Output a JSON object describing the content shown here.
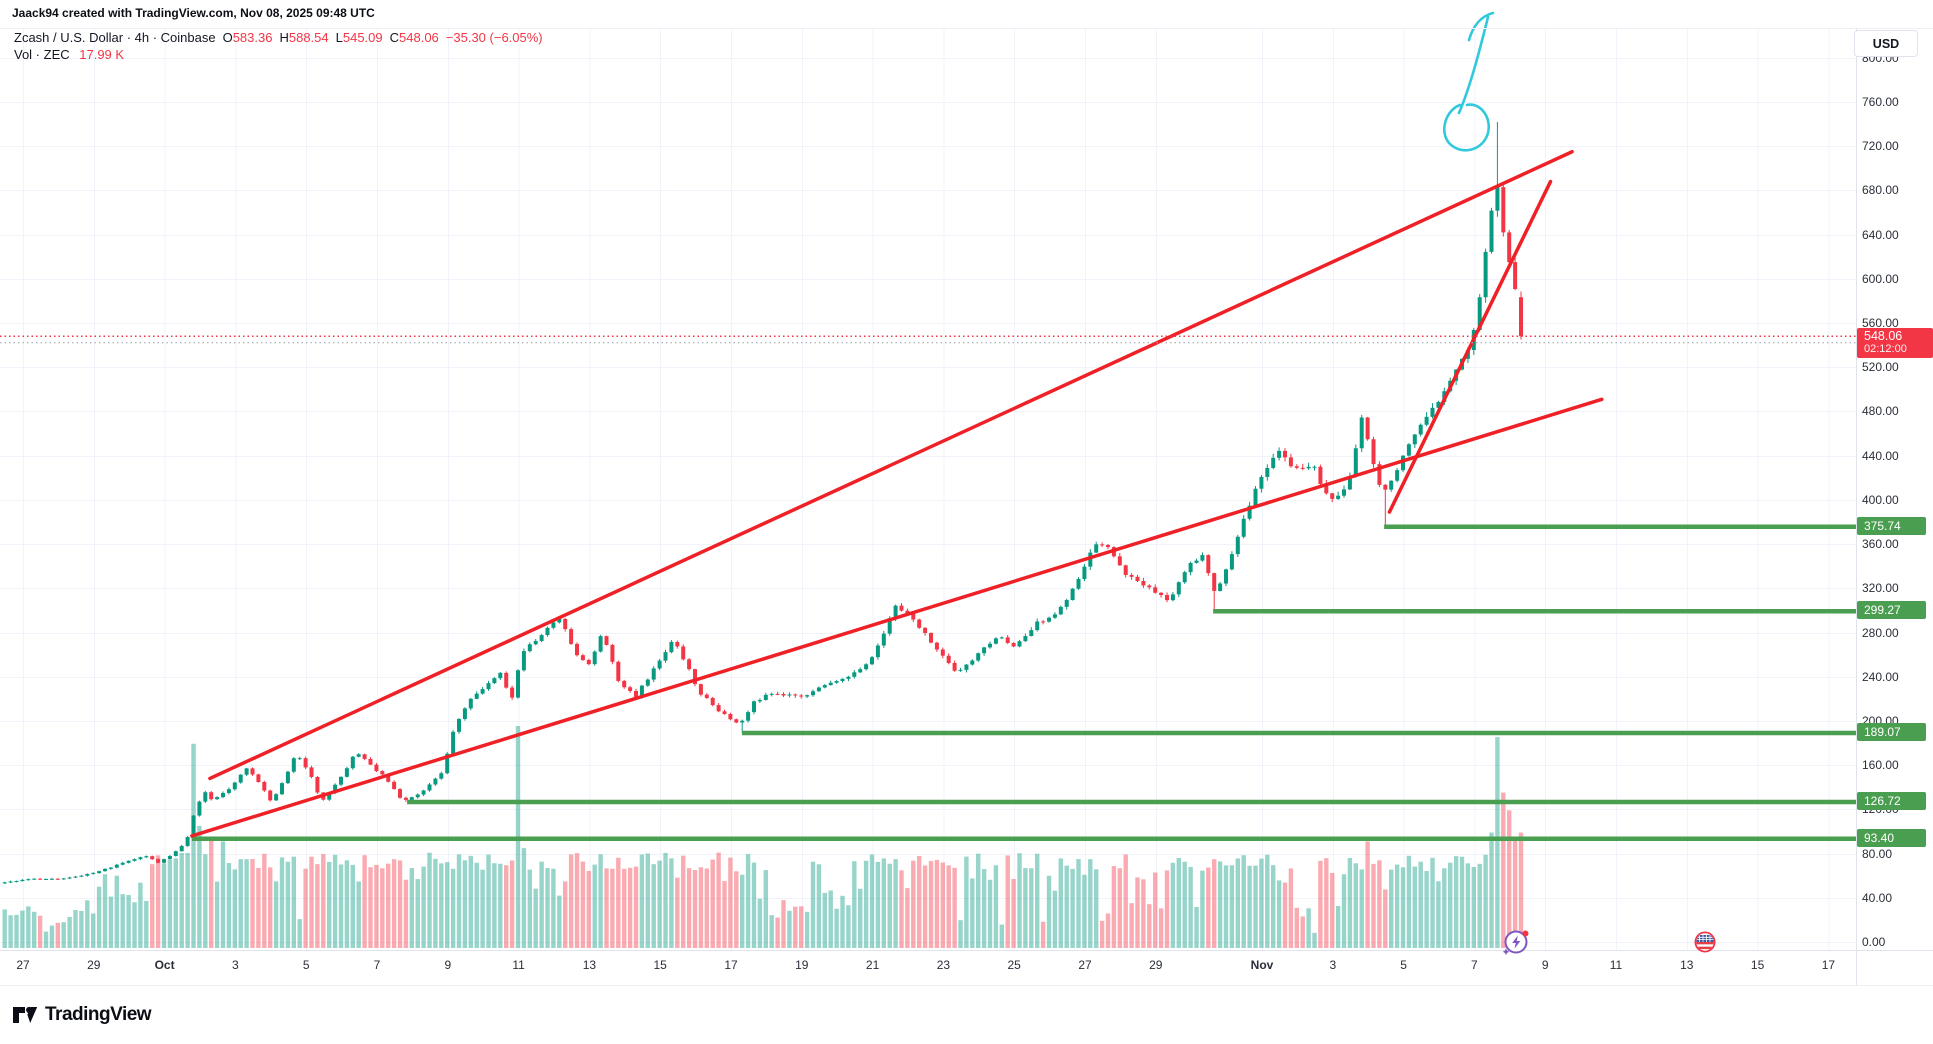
{
  "watermark": "Jaack94 created with TradingView.com, Nov 08, 2025 09:48 UTC",
  "legend": {
    "symbol_title": "Zcash / U.S. Dollar · 4h · Coinbase",
    "ohlc": [
      {
        "k": "O",
        "v": "583.36"
      },
      {
        "k": "H",
        "v": "588.54"
      },
      {
        "k": "L",
        "v": "545.09"
      },
      {
        "k": "C",
        "v": "548.06"
      }
    ],
    "change": "−35.30 (−6.05%)",
    "volume_label": "Vol · ZEC",
    "volume_value": "17.99 K"
  },
  "price_label": {
    "value": "548.06",
    "countdown": "02:12:00"
  },
  "axis": {
    "currency_button": "USD"
  },
  "logo_text": "TradingView",
  "colors": {
    "up": "#089981",
    "down": "#f23645",
    "trendline_red": "#ef2026",
    "support_green": "#4a9e50",
    "badge_red": "#f23645",
    "cyan": "#26c6da",
    "grid": "#f0f3fa",
    "axis_text": "#2a2e39"
  },
  "chart_data": {
    "type": "candlestick",
    "title": "Zcash / U.S. Dollar",
    "symbol": "ZECUSD",
    "exchange": "Coinbase",
    "interval": "4h",
    "day_unit": "days since Sep 27 2025 00:00 UTC",
    "y_axis": {
      "label": "USD",
      "min": 0,
      "max": 800,
      "tick_step": 40,
      "grid": true
    },
    "time_ticks": [
      [
        "27",
        0,
        0
      ],
      [
        "29",
        2,
        0
      ],
      [
        "Oct",
        4,
        1
      ],
      [
        "3",
        6,
        0
      ],
      [
        "5",
        8,
        0
      ],
      [
        "7",
        10,
        0
      ],
      [
        "9",
        12,
        0
      ],
      [
        "11",
        14,
        0
      ],
      [
        "13",
        16,
        0
      ],
      [
        "15",
        18,
        0
      ],
      [
        "17",
        20,
        0
      ],
      [
        "19",
        22,
        0
      ],
      [
        "21",
        24,
        0
      ],
      [
        "23",
        26,
        0
      ],
      [
        "25",
        28,
        0
      ],
      [
        "27",
        30,
        0
      ],
      [
        "29",
        32,
        0
      ],
      [
        "Nov",
        35,
        1
      ],
      [
        "3",
        37,
        0
      ],
      [
        "5",
        39,
        0
      ],
      [
        "7",
        41,
        0
      ],
      [
        "9",
        43,
        0
      ],
      [
        "11",
        45,
        0
      ],
      [
        "13",
        47,
        0
      ],
      [
        "15",
        49,
        0
      ],
      [
        "17",
        51,
        0
      ]
    ],
    "price_path_anchors": [
      [
        -0.6,
        53
      ],
      [
        0.3,
        57
      ],
      [
        1.2,
        57
      ],
      [
        2.0,
        62
      ],
      [
        2.6,
        68
      ],
      [
        3.1,
        74
      ],
      [
        3.6,
        78
      ],
      [
        3.9,
        72
      ],
      [
        4.3,
        79
      ],
      [
        4.55,
        86
      ],
      [
        4.72,
        94
      ],
      [
        4.95,
        120
      ],
      [
        5.2,
        136
      ],
      [
        5.45,
        128
      ],
      [
        6.0,
        141
      ],
      [
        6.4,
        158
      ],
      [
        6.8,
        143
      ],
      [
        7.1,
        127
      ],
      [
        7.5,
        149
      ],
      [
        7.8,
        170
      ],
      [
        8.2,
        152
      ],
      [
        8.5,
        126
      ],
      [
        9.0,
        146
      ],
      [
        9.5,
        172
      ],
      [
        9.9,
        160
      ],
      [
        10.3,
        149
      ],
      [
        10.8,
        128
      ],
      [
        11.3,
        134
      ],
      [
        11.9,
        152
      ],
      [
        12.3,
        198
      ],
      [
        12.8,
        222
      ],
      [
        13.2,
        232
      ],
      [
        13.6,
        246
      ],
      [
        13.85,
        215
      ],
      [
        14.2,
        264
      ],
      [
        14.6,
        272
      ],
      [
        15.0,
        288
      ],
      [
        15.25,
        293
      ],
      [
        15.7,
        260
      ],
      [
        16.1,
        250
      ],
      [
        16.45,
        280
      ],
      [
        16.9,
        236
      ],
      [
        17.4,
        223
      ],
      [
        18.0,
        251
      ],
      [
        18.45,
        273
      ],
      [
        18.8,
        252
      ],
      [
        19.2,
        226
      ],
      [
        19.7,
        210
      ],
      [
        20.3,
        196
      ],
      [
        20.75,
        218
      ],
      [
        21.3,
        226
      ],
      [
        22.0,
        221
      ],
      [
        22.7,
        232
      ],
      [
        23.4,
        241
      ],
      [
        24.0,
        253
      ],
      [
        24.45,
        284
      ],
      [
        24.75,
        306
      ],
      [
        25.3,
        289
      ],
      [
        26.0,
        261
      ],
      [
        26.5,
        243
      ],
      [
        27.0,
        258
      ],
      [
        27.6,
        277
      ],
      [
        28.1,
        267
      ],
      [
        28.7,
        288
      ],
      [
        29.3,
        297
      ],
      [
        29.9,
        329
      ],
      [
        30.35,
        362
      ],
      [
        30.8,
        354
      ],
      [
        31.3,
        331
      ],
      [
        32.0,
        317
      ],
      [
        32.5,
        309
      ],
      [
        33.0,
        341
      ],
      [
        33.4,
        351
      ],
      [
        33.75,
        316
      ],
      [
        34.2,
        346
      ],
      [
        34.6,
        387
      ],
      [
        35.1,
        424
      ],
      [
        35.5,
        444
      ],
      [
        36.0,
        428
      ],
      [
        36.5,
        433
      ],
      [
        37.0,
        398
      ],
      [
        37.5,
        413
      ],
      [
        37.9,
        475
      ],
      [
        38.2,
        436
      ],
      [
        38.5,
        406
      ],
      [
        38.9,
        428
      ],
      [
        39.3,
        456
      ],
      [
        39.7,
        471
      ],
      [
        40.1,
        491
      ],
      [
        40.5,
        511
      ],
      [
        40.85,
        532
      ],
      [
        41.1,
        556
      ],
      [
        41.3,
        601
      ],
      [
        41.5,
        650
      ],
      [
        41.68,
        690
      ],
      [
        41.85,
        655
      ],
      [
        42.05,
        618
      ],
      [
        42.2,
        594
      ],
      [
        42.32,
        584
      ],
      [
        42.45,
        548
      ]
    ],
    "run_high": 742,
    "peak_day": 41.65,
    "last_candle": {
      "open": 583.36,
      "high": 588.54,
      "low": 545.09,
      "close": 548.06
    },
    "current_price_line": 548.06,
    "secondary_dotted_line": 542.2,
    "support_levels": [
      {
        "price": 375.74,
        "label": "375.74",
        "from_day": 38.45
      },
      {
        "price": 299.27,
        "label": "299.27",
        "from_day": 33.62
      },
      {
        "price": 189.07,
        "label": "189.07",
        "from_day": 20.31
      },
      {
        "price": 126.72,
        "label": "126.72",
        "from_day": 10.85
      },
      {
        "price": 93.4,
        "label": "93.40",
        "from_day": 4.77
      }
    ],
    "trendlines": [
      {
        "name": "upper-wedge-line",
        "from": [
          5.28,
          148
        ],
        "to": [
          43.76,
          715
        ]
      },
      {
        "name": "lower-wedge-line",
        "from": [
          4.77,
          96
        ],
        "to": [
          44.6,
          491
        ]
      },
      {
        "name": "steep-fan-line",
        "from": [
          38.6,
          389
        ],
        "to": [
          43.15,
          688
        ]
      }
    ],
    "volume_spikes": [
      [
        4.85,
        0.92
      ],
      [
        5.05,
        0.55
      ],
      [
        5.35,
        0.5
      ],
      [
        5.62,
        0.48
      ],
      [
        6.35,
        0.4
      ],
      [
        7.1,
        0.3
      ],
      [
        10.4,
        0.4
      ],
      [
        13.9,
        1.0
      ],
      [
        14.12,
        0.45
      ],
      [
        15.25,
        0.3
      ],
      [
        20.3,
        0.33
      ],
      [
        24.75,
        0.35
      ],
      [
        29.9,
        0.33
      ],
      [
        33.7,
        0.4
      ],
      [
        35.15,
        0.42
      ],
      [
        37.9,
        0.48
      ],
      [
        41.32,
        0.42
      ],
      [
        41.48,
        0.52
      ],
      [
        41.65,
        0.95
      ],
      [
        41.82,
        0.7
      ],
      [
        41.98,
        0.62
      ],
      [
        42.15,
        0.5
      ],
      [
        42.32,
        0.52
      ]
    ],
    "last_volume": "17.99 K"
  },
  "annotations": {
    "cyan_scribble": [
      "M1488 17 C1481 45 1471 85 1459 113",
      "M1460 105 C1446 110 1439 131 1449 143 C1461 156 1483 151 1488 133 C1492 116 1479 102 1467 105",
      "M1469 40 C1473 26 1481 16 1493 13"
    ]
  },
  "markers": [
    {
      "type": "lightning",
      "x_day": 42.2
    },
    {
      "type": "us-flag",
      "x_day": 47.5
    }
  ]
}
